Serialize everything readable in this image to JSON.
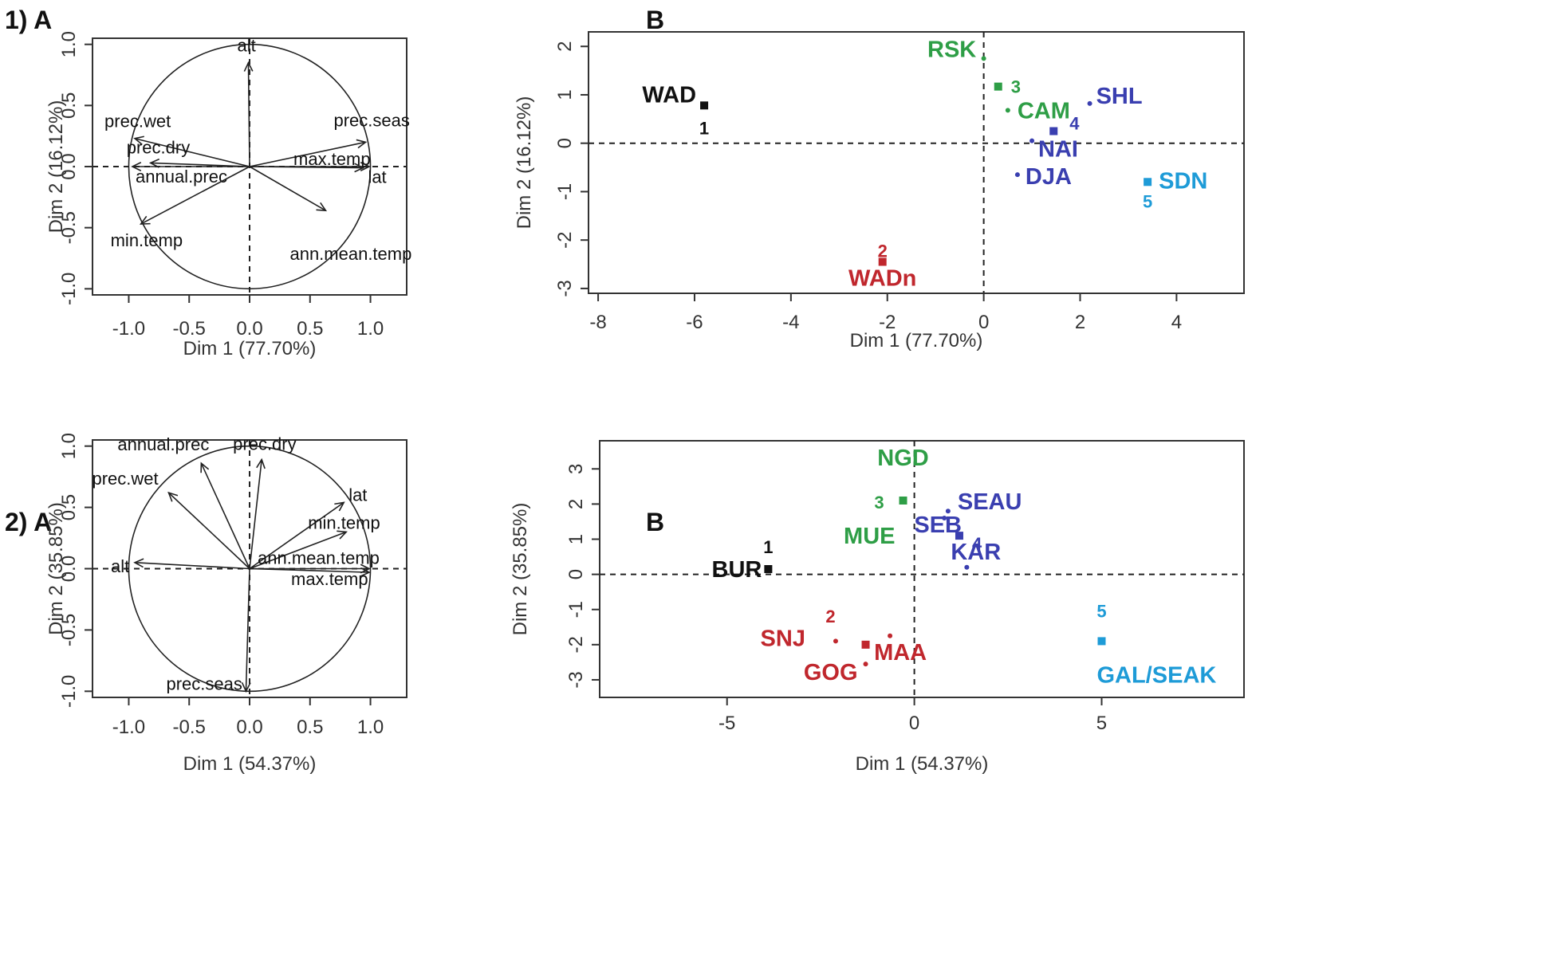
{
  "panel_labels": [
    "1) A",
    "B",
    "2) A",
    "B"
  ],
  "chart_data": [
    {
      "type": "scatter",
      "subtype": "pca-variable-correlation-circle",
      "panel_label": "1) A",
      "xlabel": "Dim 1 (77.70%)",
      "ylabel": "Dim 2 (16.12%)",
      "xlim": [
        -1.3,
        1.3
      ],
      "ylim": [
        -1.05,
        1.05
      ],
      "xticks": [
        "-1.0",
        "-0.5",
        "0.0",
        "0.5",
        "1.0"
      ],
      "yticks": [
        "-1.0",
        "-0.5",
        "0.0",
        "0.5",
        "1.0"
      ],
      "variables": [
        {
          "name": "alt",
          "x": -0.01,
          "y": 0.85
        },
        {
          "name": "prec.wet",
          "x": -0.95,
          "y": 0.23
        },
        {
          "name": "prec.dry",
          "x": -0.82,
          "y": 0.03
        },
        {
          "name": "annual.prec",
          "x": -0.97,
          "y": 0.0
        },
        {
          "name": "prec.seas",
          "x": 0.96,
          "y": 0.2
        },
        {
          "name": "max.temp",
          "x": 0.99,
          "y": 0.0
        },
        {
          "name": "lat",
          "x": 0.94,
          "y": -0.01
        },
        {
          "name": "ann.mean.temp",
          "x": 0.63,
          "y": -0.36
        },
        {
          "name": "min.temp",
          "x": -0.9,
          "y": -0.47
        }
      ]
    },
    {
      "type": "scatter",
      "subtype": "pca-individuals",
      "panel_label": "B",
      "xlabel": "Dim 1 (77.70%)",
      "ylabel": "Dim 2 (16.12%)",
      "xlim": [
        -8.2,
        5.4
      ],
      "ylim": [
        -3.1,
        2.3
      ],
      "xticks": [
        "-8",
        "-6",
        "-4",
        "-2",
        "0",
        "2",
        "4"
      ],
      "yticks": [
        "-3",
        "-2",
        "-1",
        "0",
        "1",
        "2"
      ],
      "points": [
        {
          "label": "WAD",
          "x": -5.8,
          "y": 0.78,
          "cluster": "1",
          "color": "#111111"
        },
        {
          "label": "WADn",
          "x": -2.1,
          "y": -2.45,
          "cluster": "2",
          "color": "#c0272d"
        },
        {
          "label": "RSK",
          "x": 0.0,
          "y": 1.75,
          "cluster": "3",
          "color": "#2e9e46"
        },
        {
          "label": "CAM",
          "x": 0.5,
          "y": 0.68,
          "cluster": "3",
          "color": "#2e9e46"
        },
        {
          "label": "SHL",
          "x": 2.2,
          "y": 0.82,
          "cluster": "4",
          "color": "#3a3fb0"
        },
        {
          "label": "NAI",
          "x": 1.0,
          "y": 0.05,
          "cluster": "4",
          "color": "#3a3fb0"
        },
        {
          "label": "DJA",
          "x": 0.7,
          "y": -0.65,
          "cluster": "4",
          "color": "#3a3fb0"
        },
        {
          "label": "SDN",
          "x": 3.4,
          "y": -0.8,
          "cluster": "5",
          "color": "#1e9bd7"
        }
      ],
      "cluster_centers": [
        {
          "label": "1",
          "x": -5.8,
          "y": 0.78,
          "color": "#111111"
        },
        {
          "label": "2",
          "x": -2.1,
          "y": -2.45,
          "color": "#c0272d"
        },
        {
          "label": "3",
          "x": 0.3,
          "y": 1.17,
          "color": "#2e9e46"
        },
        {
          "label": "4",
          "x": 1.45,
          "y": 0.25,
          "color": "#3a3fb0"
        },
        {
          "label": "5",
          "x": 3.4,
          "y": -0.8,
          "color": "#1e9bd7"
        }
      ]
    },
    {
      "type": "scatter",
      "subtype": "pca-variable-correlation-circle",
      "panel_label": "2) A",
      "xlabel": "Dim 1 (54.37%)",
      "ylabel": "Dim 2 (35.85%)",
      "xlim": [
        -1.3,
        1.3
      ],
      "ylim": [
        -1.05,
        1.05
      ],
      "xticks": [
        "-1.0",
        "-0.5",
        "0.0",
        "0.5",
        "1.0"
      ],
      "yticks": [
        "-1.0",
        "-0.5",
        "0.0",
        "0.5",
        "1.0"
      ],
      "variables": [
        {
          "name": "annual.prec",
          "x": -0.4,
          "y": 0.86
        },
        {
          "name": "prec.dry",
          "x": 0.1,
          "y": 0.89
        },
        {
          "name": "prec.wet",
          "x": -0.67,
          "y": 0.62
        },
        {
          "name": "lat",
          "x": 0.78,
          "y": 0.54
        },
        {
          "name": "min.temp",
          "x": 0.8,
          "y": 0.3
        },
        {
          "name": "alt",
          "x": -0.95,
          "y": 0.05
        },
        {
          "name": "ann.mean.temp",
          "x": 0.99,
          "y": 0.0
        },
        {
          "name": "max.temp",
          "x": 0.99,
          "y": -0.03
        },
        {
          "name": "prec.seas",
          "x": -0.03,
          "y": -1.0
        }
      ]
    },
    {
      "type": "scatter",
      "subtype": "pca-individuals",
      "panel_label": "B",
      "xlabel": "Dim 1 (54.37%)",
      "ylabel": "Dim 2 (35.85%)",
      "xlim": [
        -8.4,
        8.8
      ],
      "ylim": [
        -3.5,
        3.8
      ],
      "xticks": [
        "-5",
        "0",
        "5"
      ],
      "yticks": [
        "-3",
        "-2",
        "-1",
        "0",
        "1",
        "2",
        "3"
      ],
      "points": [
        {
          "label": "NGD",
          "x": -0.3,
          "y": 2.1,
          "cluster": "3",
          "color": "#2e9e46"
        },
        {
          "label": "MUE",
          "x": -0.3,
          "y": 2.1,
          "cluster": "3",
          "color": "#2e9e46"
        },
        {
          "label": "SEAU",
          "x": 0.9,
          "y": 1.8,
          "cluster": "4",
          "color": "#3a3fb0"
        },
        {
          "label": "SEB",
          "x": 0.8,
          "y": 1.6,
          "cluster": "4",
          "color": "#3a3fb0"
        },
        {
          "label": "KAR",
          "x": 1.4,
          "y": 0.2,
          "cluster": "4",
          "color": "#3a3fb0"
        },
        {
          "label": "BUR",
          "x": -3.9,
          "y": 0.15,
          "cluster": "1",
          "color": "#111111"
        },
        {
          "label": "SNJ",
          "x": -2.1,
          "y": -1.9,
          "cluster": "2",
          "color": "#c0272d"
        },
        {
          "label": "MAA",
          "x": -0.65,
          "y": -1.75,
          "cluster": "2",
          "color": "#c0272d"
        },
        {
          "label": "GOG",
          "x": -1.3,
          "y": -2.55,
          "cluster": "2",
          "color": "#c0272d"
        },
        {
          "label": "GAL/SEAK",
          "x": 5.0,
          "y": -1.9,
          "cluster": "5",
          "color": "#1e9bd7"
        }
      ],
      "cluster_centers": [
        {
          "label": "1",
          "x": -3.9,
          "y": 0.15,
          "color": "#111111"
        },
        {
          "label": "2",
          "x": -1.3,
          "y": -2.0,
          "color": "#c0272d"
        },
        {
          "label": "3",
          "x": -0.3,
          "y": 2.1,
          "color": "#2e9e46"
        },
        {
          "label": "4",
          "x": 1.2,
          "y": 1.1,
          "color": "#3a3fb0"
        },
        {
          "label": "5",
          "x": 5.0,
          "y": -1.9,
          "color": "#1e9bd7"
        }
      ]
    }
  ]
}
